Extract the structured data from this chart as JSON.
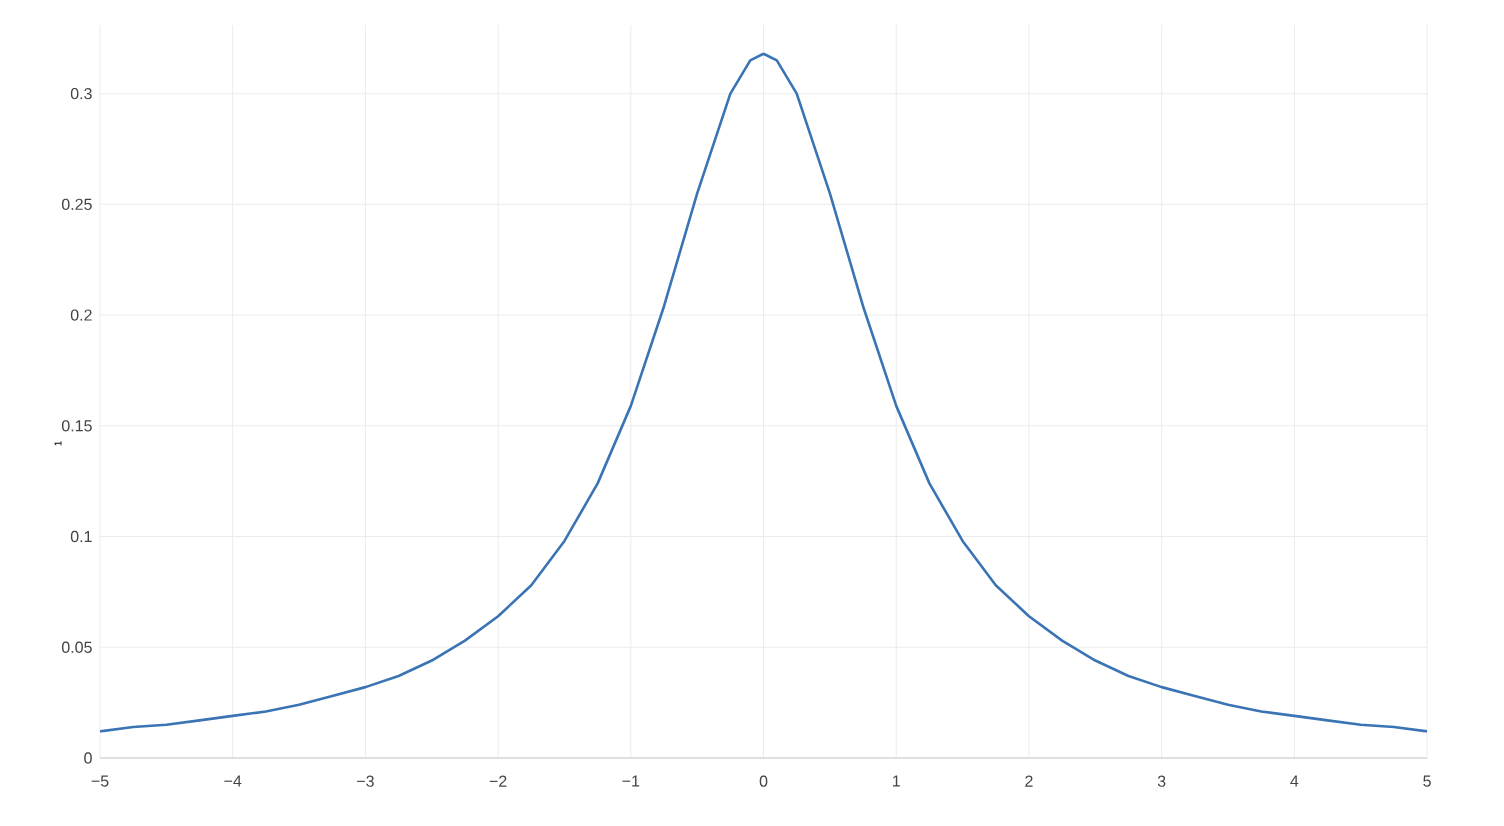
{
  "chart_data": {
    "type": "line",
    "ylabel": "1",
    "x": [
      -5,
      -4.75,
      -4.5,
      -4.25,
      -4,
      -3.75,
      -3.5,
      -3.25,
      -3,
      -2.75,
      -2.5,
      -2.25,
      -2,
      -1.75,
      -1.5,
      -1.25,
      -1,
      -0.75,
      -0.5,
      -0.25,
      -0.1,
      0,
      0.1,
      0.25,
      0.5,
      0.75,
      1,
      1.25,
      1.5,
      1.75,
      2,
      2.25,
      2.5,
      2.75,
      3,
      3.25,
      3.5,
      3.75,
      4,
      4.25,
      4.5,
      4.75,
      5
    ],
    "series": [
      {
        "color": "#3a74b4",
        "values": [
          0.012,
          0.014,
          0.015,
          0.017,
          0.019,
          0.021,
          0.024,
          0.028,
          0.032,
          0.037,
          0.044,
          0.053,
          0.064,
          0.078,
          0.098,
          0.124,
          0.159,
          0.204,
          0.255,
          0.3,
          0.315,
          0.318,
          0.315,
          0.3,
          0.255,
          0.204,
          0.159,
          0.124,
          0.098,
          0.078,
          0.064,
          0.053,
          0.044,
          0.037,
          0.032,
          0.028,
          0.024,
          0.021,
          0.019,
          0.017,
          0.015,
          0.014,
          0.012
        ]
      }
    ],
    "xlim": [
      -5,
      5
    ],
    "ylim": [
      0,
      0.331
    ],
    "xticks": [
      {
        "value": -5,
        "label": "−5"
      },
      {
        "value": -4,
        "label": "−4"
      },
      {
        "value": -3,
        "label": "−3"
      },
      {
        "value": -2,
        "label": "−2"
      },
      {
        "value": -1,
        "label": "−1"
      },
      0,
      1,
      2,
      3,
      4,
      5
    ],
    "yticks": [
      0,
      0.05,
      0.1,
      0.15,
      0.2,
      0.25,
      0.3
    ],
    "grid": true,
    "line_style": "solid",
    "marker": "none"
  }
}
